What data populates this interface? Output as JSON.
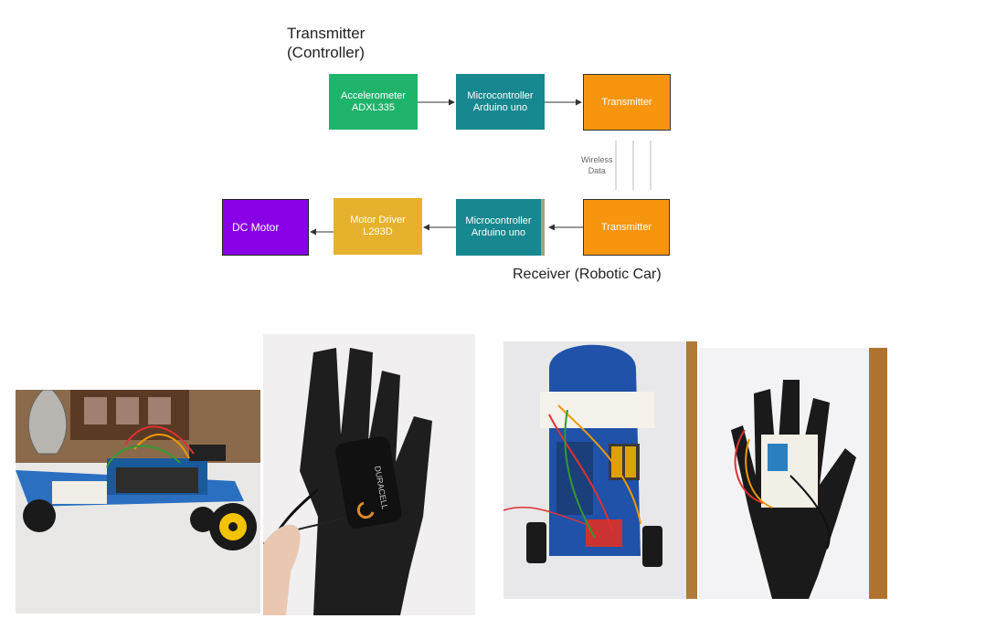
{
  "diagram": {
    "transmitter_heading": [
      "Transmitter",
      "(Controller)"
    ],
    "receiver_heading": "Receiver (Robotic Car)",
    "wireless_label": [
      "Wireless",
      "Data"
    ],
    "blocks": {
      "accelerometer": {
        "lines": [
          "Accelerometer",
          "ADXL335"
        ],
        "color": "#1fb36b"
      },
      "mcu_top": {
        "lines": [
          "Microcontroller",
          "Arduino uno"
        ],
        "color": "#17888f"
      },
      "transmitter_top": {
        "lines": [
          "Transmitter"
        ],
        "color": "#f7950f"
      },
      "transmitter_bottom": {
        "lines": [
          "Transmitter"
        ],
        "color": "#f7950f"
      },
      "mcu_bottom": {
        "lines": [
          "Microcontroller",
          "Arduino uno"
        ],
        "color": "#17888f"
      },
      "motor_driver": {
        "lines": [
          "Motor Driver",
          "L293D"
        ],
        "color": "#e6b12c"
      },
      "dc_motor": {
        "lines": [
          "DC Motor"
        ],
        "color": "#8a00e6"
      }
    }
  },
  "photos": {
    "battery_label": "DURACELL"
  }
}
